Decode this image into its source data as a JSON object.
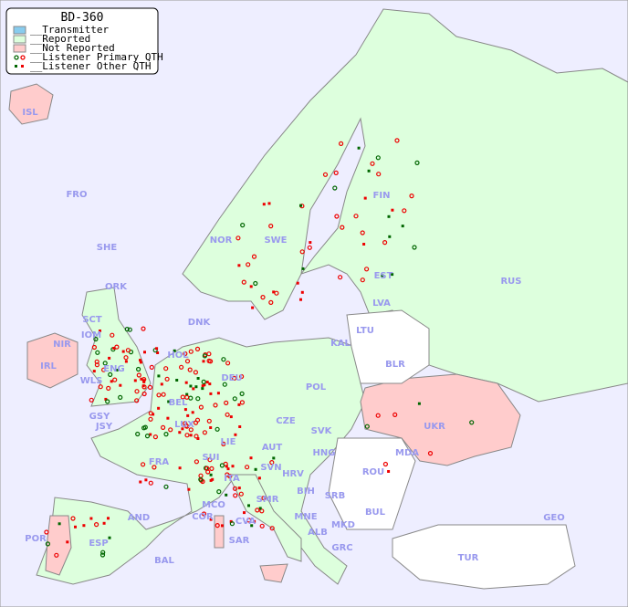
{
  "title": "BD-360",
  "legend": [
    {
      "label": "__Transmitter",
      "color": "#88ccee"
    },
    {
      "label": "__Reported",
      "color": "#ddffdd"
    },
    {
      "label": "__Not Reported",
      "color": "#ffcccc"
    },
    {
      "label": "__Listener Primary QTH",
      "colors": [
        "#006600",
        "#ee0000"
      ]
    },
    {
      "label": "__Listener Other QTH",
      "colors": [
        "#006600",
        "#ee0000"
      ]
    }
  ],
  "colors": {
    "sea": "#eeeeff",
    "reported": "#ddffdd",
    "not_reported": "#ffcccc",
    "no_data": "#ffffff",
    "label": "#9999ee",
    "primary_red": "#ee0000",
    "primary_green": "#006600"
  },
  "countries": [
    "ISL",
    "FRO",
    "SHE",
    "ORK",
    "NOR",
    "SWE",
    "FIN",
    "EST",
    "LVA",
    "LTU",
    "RUS",
    "KAL",
    "DNK",
    "HOL",
    "SCT",
    "NIR",
    "IRL",
    "IOM",
    "WLS",
    "ENG",
    "DEU",
    "POL",
    "BLR",
    "UKR",
    "BEL",
    "LUX",
    "GSY",
    "JSY",
    "FRA",
    "SUI",
    "LIE",
    "AUT",
    "CZE",
    "SVK",
    "HNG",
    "MDA",
    "ROU",
    "SVN",
    "HRV",
    "BIH",
    "SRB",
    "ITA",
    "MCO",
    "COR",
    "SMR",
    "CVA",
    "MNE",
    "ALB",
    "MKD",
    "BUL",
    "GRC",
    "TUR",
    "GEO",
    "AND",
    "POR",
    "ESP",
    "BAL",
    "SAR"
  ]
}
